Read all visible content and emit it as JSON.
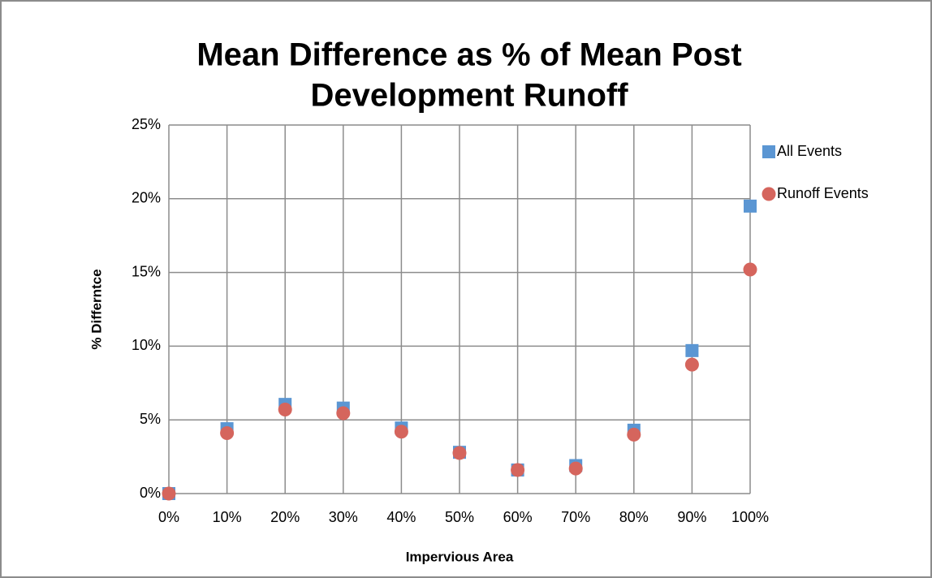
{
  "chart_data": {
    "type": "scatter",
    "title": [
      "Mean Difference as % of Mean Post",
      "Development Runoff"
    ],
    "x_label": "Impervious Area",
    "y_label": "% Differntce",
    "x": [
      0,
      10,
      20,
      30,
      40,
      50,
      60,
      70,
      80,
      90,
      100
    ],
    "series": [
      {
        "name": "All Events",
        "color": "#5b96d3",
        "marker": "square",
        "values": [
          0,
          4.4,
          6.05,
          5.8,
          4.45,
          2.8,
          1.6,
          1.9,
          4.3,
          9.7,
          19.5
        ]
      },
      {
        "name": "Runoff Events",
        "color": "#d5655d",
        "marker": "circle",
        "values": [
          0,
          4.1,
          5.7,
          5.45,
          4.2,
          2.75,
          1.6,
          1.7,
          4.0,
          8.75,
          15.2
        ]
      }
    ],
    "xlim": [
      0,
      100
    ],
    "xticks": [
      {
        "value": 0,
        "label": "0%"
      },
      {
        "value": 10,
        "label": "10%"
      },
      {
        "value": 20,
        "label": "20%"
      },
      {
        "value": 30,
        "label": "30%"
      },
      {
        "value": 40,
        "label": "40%"
      },
      {
        "value": 50,
        "label": "50%"
      },
      {
        "value": 60,
        "label": "60%"
      },
      {
        "value": 70,
        "label": "70%"
      },
      {
        "value": 80,
        "label": "80%"
      },
      {
        "value": 90,
        "label": "90%"
      },
      {
        "value": 100,
        "label": "100%"
      }
    ],
    "ylim": [
      0,
      25
    ],
    "yticks": [
      {
        "value": 0,
        "label": "0%"
      },
      {
        "value": 5,
        "label": "5%"
      },
      {
        "value": 10,
        "label": "10%"
      },
      {
        "value": 15,
        "label": "15%"
      },
      {
        "value": 20,
        "label": "20%"
      },
      {
        "value": 25,
        "label": "25%"
      }
    ],
    "grid": true,
    "legend": "right"
  }
}
